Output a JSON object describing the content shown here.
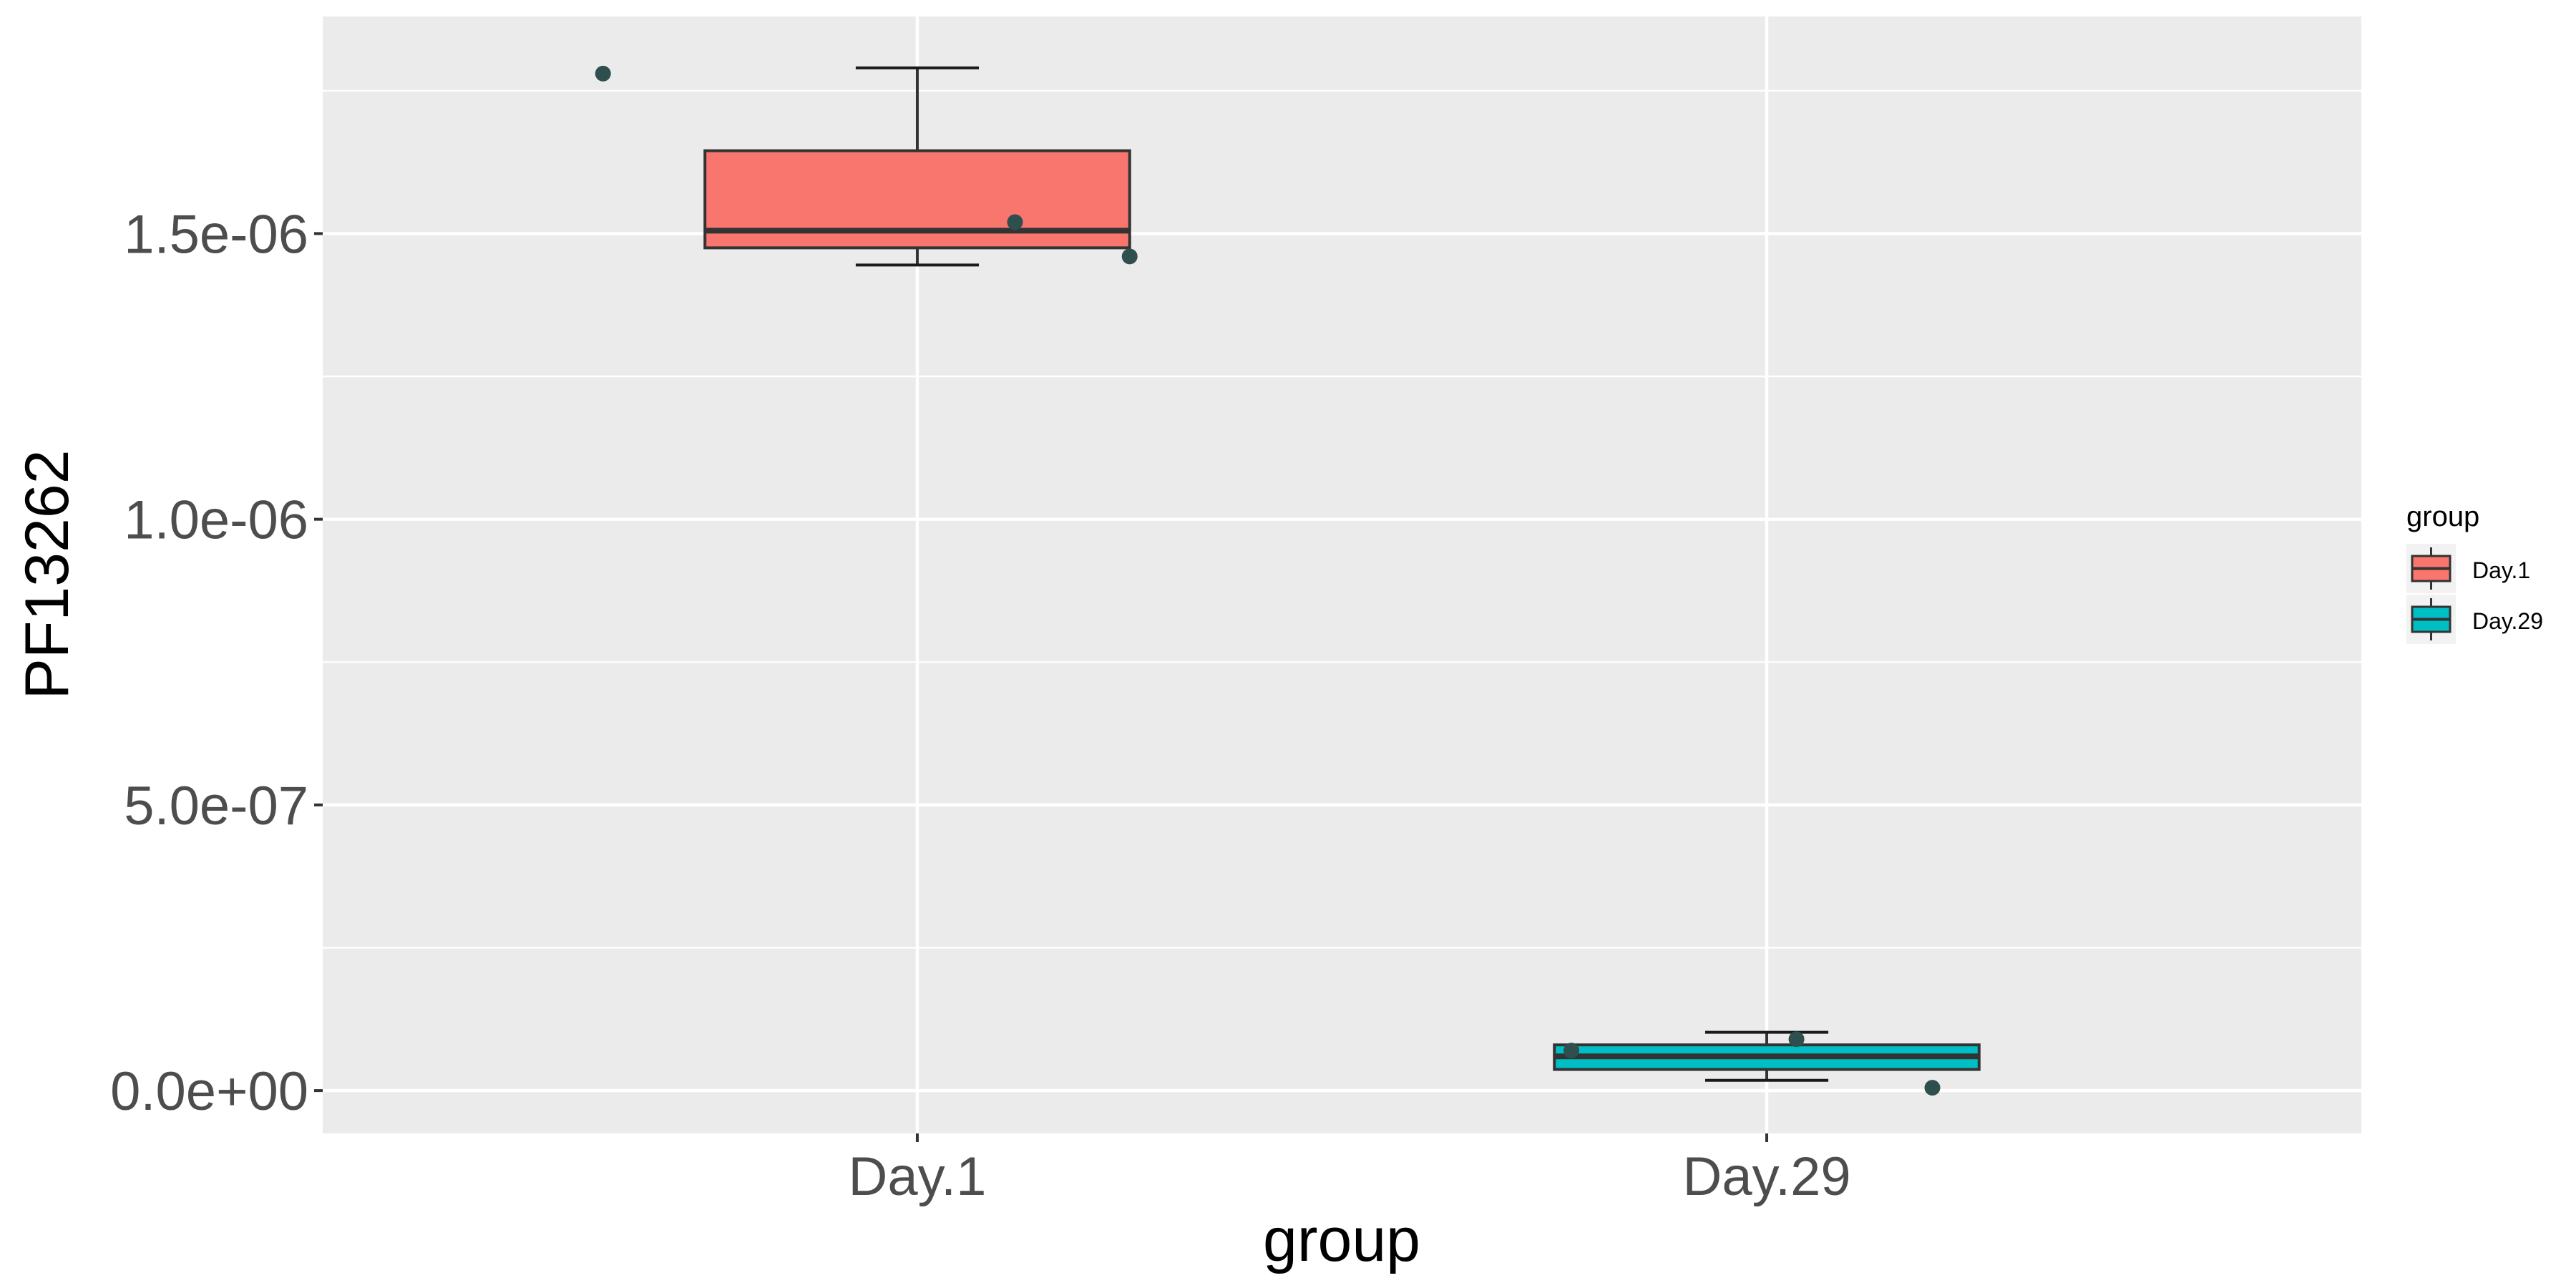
{
  "chart_data": {
    "type": "box",
    "xlabel": "group",
    "ylabel": "PF13262",
    "categories": [
      "Day.1",
      "Day.29"
    ],
    "ylim": [
      -7.5e-08,
      1.88e-06
    ],
    "yticks": [
      0,
      5e-07,
      1e-06,
      1.5e-06
    ],
    "ytick_labels": [
      "0.0e+00",
      "5.0e-07",
      "1.0e-06",
      "1.5e-06"
    ],
    "grid": true,
    "legend": {
      "title": "group",
      "position": "right",
      "entries": [
        "Day.1",
        "Day.29"
      ]
    },
    "boxes": [
      {
        "group": "Day.1",
        "color": "#F8766D",
        "lower_whisker": 1.445e-06,
        "q1": 1.475e-06,
        "median": 1.505e-06,
        "q3": 1.645e-06,
        "upper_whisker": 1.79e-06
      },
      {
        "group": "Day.29",
        "color": "#00BFC4",
        "lower_whisker": 1.8e-08,
        "q1": 3.7e-08,
        "median": 6e-08,
        "q3": 8e-08,
        "upper_whisker": 1.02e-07
      }
    ],
    "points": [
      {
        "group": "Day.1",
        "jitter": -0.37,
        "y": 1.78e-06
      },
      {
        "group": "Day.1",
        "jitter": 0.115,
        "y": 1.52e-06
      },
      {
        "group": "Day.1",
        "jitter": 0.25,
        "y": 1.46e-06
      },
      {
        "group": "Day.29",
        "jitter": -0.23,
        "y": 7e-08
      },
      {
        "group": "Day.29",
        "jitter": 0.035,
        "y": 9e-08
      },
      {
        "group": "Day.29",
        "jitter": 0.195,
        "y": 5e-09
      }
    ],
    "point_color": "#2F4F4F"
  }
}
